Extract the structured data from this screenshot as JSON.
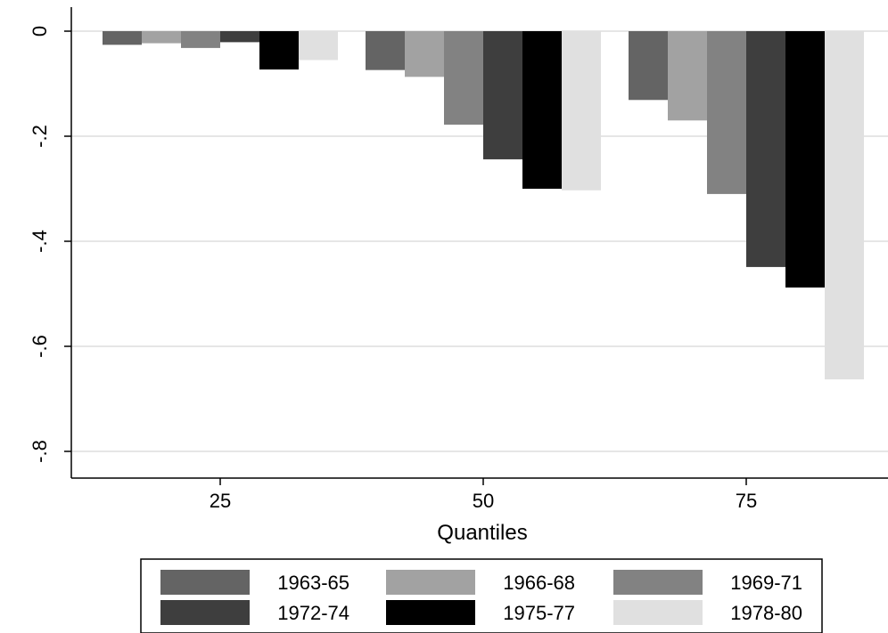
{
  "chart_data": {
    "type": "bar",
    "title": "",
    "xlabel": "Quantiles",
    "ylabel": "",
    "categories": [
      "25",
      "50",
      "75"
    ],
    "ylim": [
      -0.85,
      0.04
    ],
    "yticks": [
      0,
      -0.2,
      -0.4,
      -0.6,
      -0.8
    ],
    "ytick_labels": [
      "0",
      "-.2",
      "-.4",
      "-.6",
      "-.8"
    ],
    "grid": true,
    "legend_position": "bottom",
    "series": [
      {
        "name": "1963-65",
        "color": "#646464",
        "values": [
          -0.026,
          -0.074,
          -0.131
        ]
      },
      {
        "name": "1966-68",
        "color": "#a2a2a2",
        "values": [
          -0.023,
          -0.087,
          -0.17
        ]
      },
      {
        "name": "1969-71",
        "color": "#828282",
        "values": [
          -0.032,
          -0.178,
          -0.31
        ]
      },
      {
        "name": "1972-74",
        "color": "#3e3e3e",
        "values": [
          -0.021,
          -0.244,
          -0.449
        ]
      },
      {
        "name": "1975-77",
        "color": "#000000",
        "values": [
          -0.073,
          -0.3,
          -0.488
        ]
      },
      {
        "name": "1978-80",
        "color": "#e0e0e0",
        "values": [
          -0.055,
          -0.303,
          -0.663
        ]
      }
    ]
  }
}
